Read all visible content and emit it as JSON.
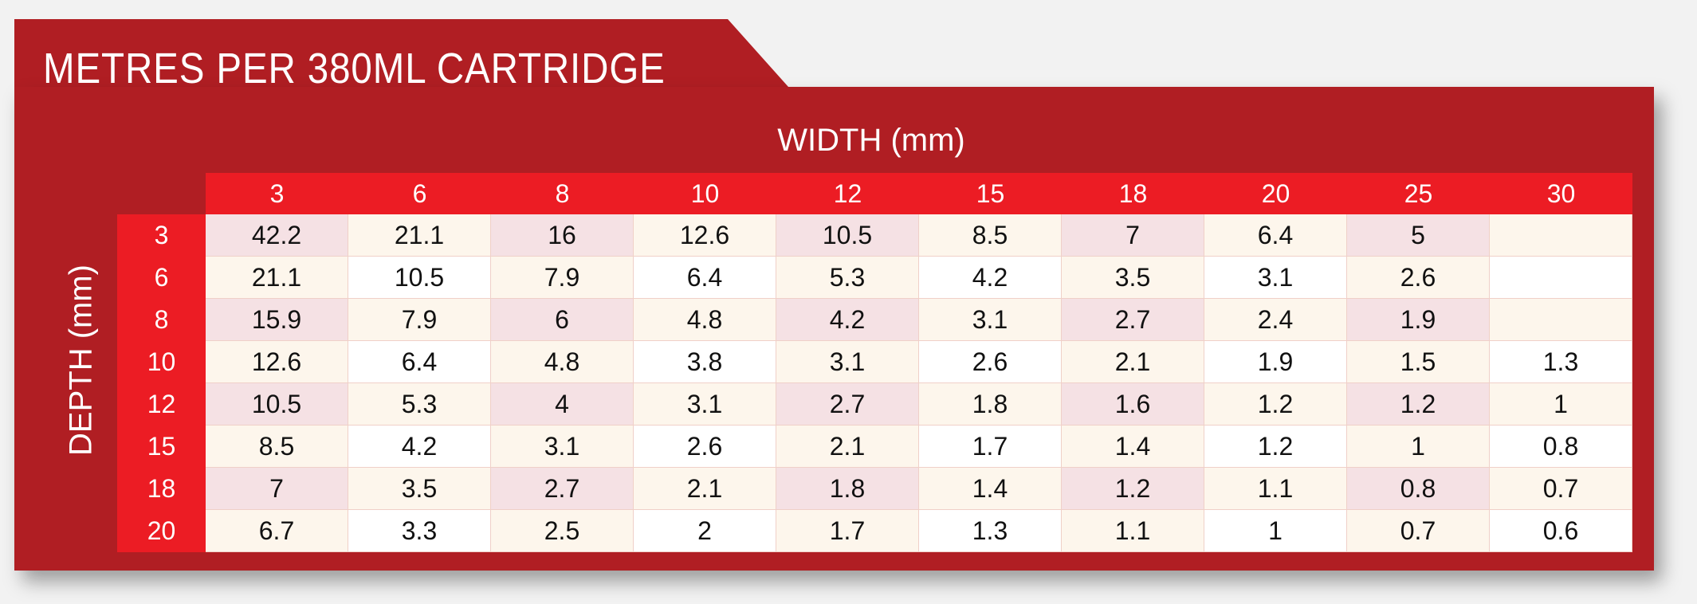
{
  "title": "METRES PER 380ML CARTRIDGE",
  "width_label": "WIDTH (mm)",
  "depth_label": "DEPTH (mm)",
  "colors": {
    "panel": "#b01e23",
    "header": "#ec1c24",
    "cell_pink": "#f5e1e4",
    "cell_cream": "#fdf6ec",
    "cell_white": "#ffffff"
  },
  "widths": [
    "3",
    "6",
    "8",
    "10",
    "12",
    "15",
    "18",
    "20",
    "25",
    "30"
  ],
  "depths": [
    "3",
    "6",
    "8",
    "10",
    "12",
    "15",
    "18",
    "20"
  ],
  "rows": [
    [
      "42.2",
      "21.1",
      "16",
      "12.6",
      "10.5",
      "8.5",
      "7",
      "6.4",
      "5",
      ""
    ],
    [
      "21.1",
      "10.5",
      "7.9",
      "6.4",
      "5.3",
      "4.2",
      "3.5",
      "3.1",
      "2.6",
      ""
    ],
    [
      "15.9",
      "7.9",
      "6",
      "4.8",
      "4.2",
      "3.1",
      "2.7",
      "2.4",
      "1.9",
      ""
    ],
    [
      "12.6",
      "6.4",
      "4.8",
      "3.8",
      "3.1",
      "2.6",
      "2.1",
      "1.9",
      "1.5",
      "1.3"
    ],
    [
      "10.5",
      "5.3",
      "4",
      "3.1",
      "2.7",
      "1.8",
      "1.6",
      "1.2",
      "1.2",
      "1"
    ],
    [
      "8.5",
      "4.2",
      "3.1",
      "2.6",
      "2.1",
      "1.7",
      "1.4",
      "1.2",
      "1",
      "0.8"
    ],
    [
      "7",
      "3.5",
      "2.7",
      "2.1",
      "1.8",
      "1.4",
      "1.2",
      "1.1",
      "0.8",
      "0.7"
    ],
    [
      "6.7",
      "3.3",
      "2.5",
      "2",
      "1.7",
      "1.3",
      "1.1",
      "1",
      "0.7",
      "0.6"
    ]
  ]
}
